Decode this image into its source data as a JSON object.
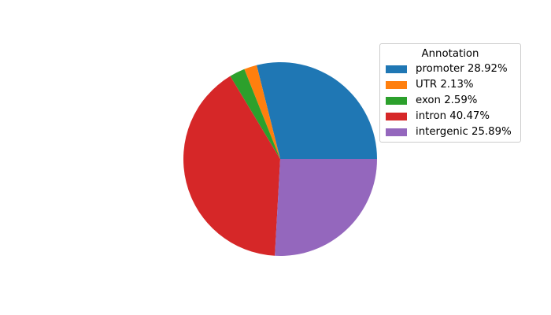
{
  "figure": {
    "background": "#ffffff"
  },
  "chart_data": {
    "type": "pie",
    "labels": [
      "promoter",
      "UTR",
      "exon",
      "intron",
      "intergenic"
    ],
    "values": [
      28.92,
      2.13,
      2.59,
      40.47,
      25.89
    ],
    "colors": [
      "#1f77b4",
      "#ff7f0e",
      "#2ca02c",
      "#d62728",
      "#9467bd"
    ],
    "unit": "%",
    "start_angle_deg": 0,
    "direction": "counterclockwise",
    "legend": {
      "title": "Annotation",
      "position": "upper right",
      "labels": [
        "promoter 28.92%",
        "UTR 2.13%",
        "exon 2.59%",
        "intron 40.47%",
        "intergenic 25.89%"
      ]
    }
  }
}
